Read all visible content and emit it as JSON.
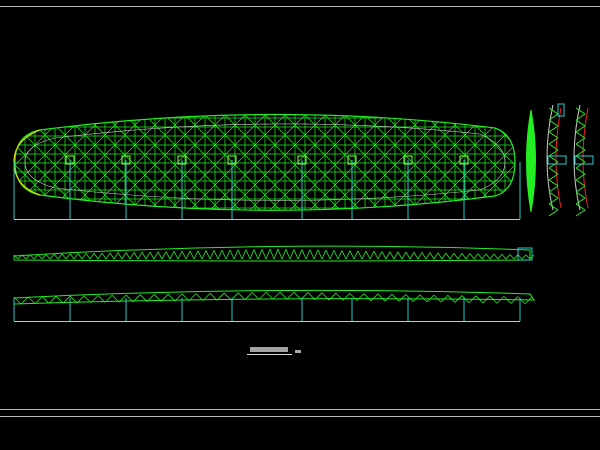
{
  "colors": {
    "background": "#000000",
    "truss": "#22ee22",
    "column": "#22cccc",
    "baseline": "#dddd00",
    "frame": "#bbbbbb",
    "chord": "#ee2222",
    "title": "#dddddd"
  },
  "drawing": {
    "views": [
      "plan",
      "front-elevation",
      "side-elevation",
      "section-a",
      "section-b"
    ]
  }
}
